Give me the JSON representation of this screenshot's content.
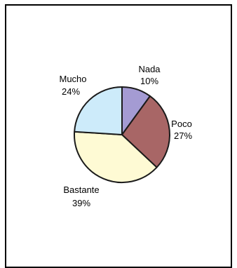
{
  "chart_data": {
    "type": "pie",
    "title": "",
    "slices": [
      {
        "label": "Nada",
        "value": 10,
        "value_label": "10%",
        "color": "#A49BD3"
      },
      {
        "label": "Poco",
        "value": 27,
        "value_label": "27%",
        "color": "#A86666"
      },
      {
        "label": "Bastante",
        "value": 39,
        "value_label": "39%",
        "color": "#FEFAD4"
      },
      {
        "label": "Mucho",
        "value": 24,
        "value_label": "24%",
        "color": "#CDEBFA"
      }
    ],
    "start_angle_deg": -90,
    "direction": "clockwise"
  }
}
